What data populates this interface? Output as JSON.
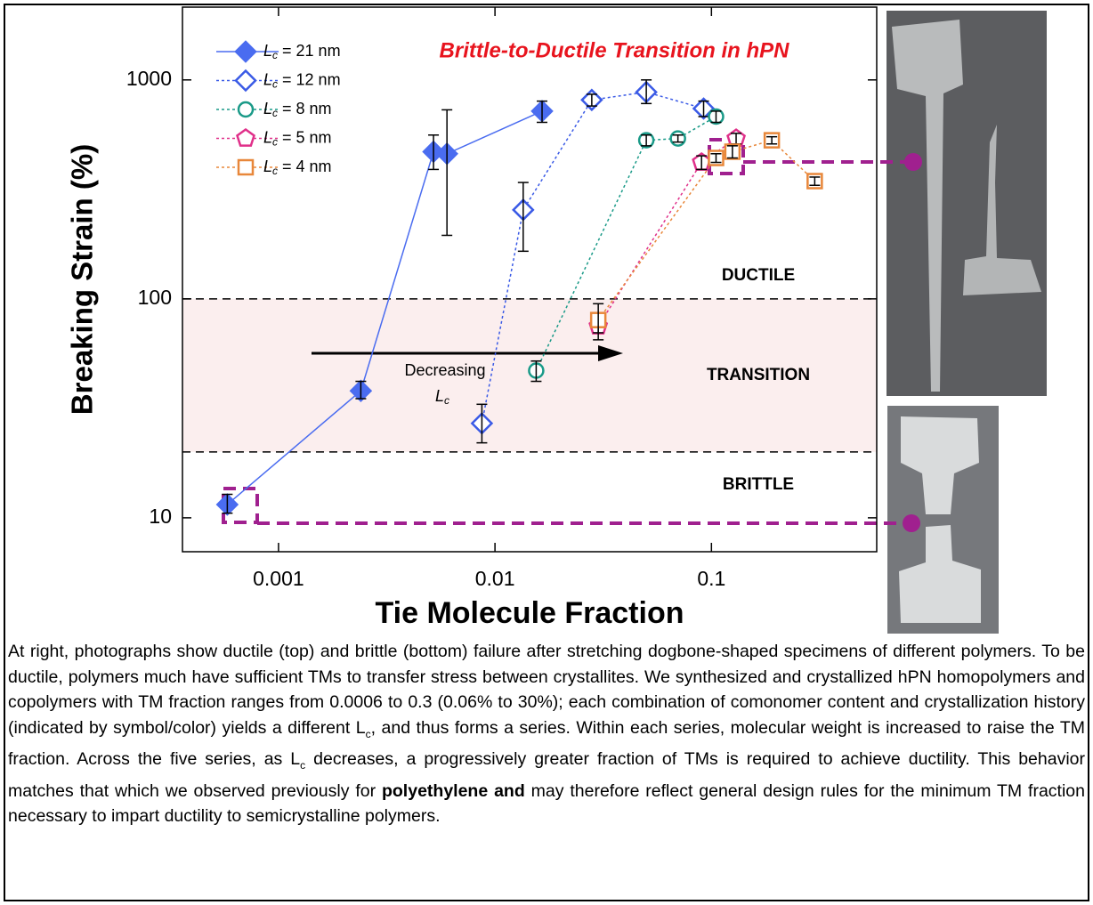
{
  "chart_data": {
    "type": "scatter-line",
    "title": "Brittle-to-Ductile Transition in hPN",
    "x_label": "Tie Molecule Fraction",
    "y_label": "Breaking Strain (%)",
    "x_log": true,
    "y_log": true,
    "xlim": [
      0.00036,
      0.58
    ],
    "ylim": [
      7,
      2150
    ],
    "xticks": [
      0.001,
      0.01,
      0.1
    ],
    "yticks": [
      10,
      100,
      1000
    ],
    "regions": {
      "bounds": [
        20,
        100
      ],
      "labels": [
        "BRITTLE",
        "TRANSITION",
        "DUCTILE"
      ],
      "shade": "#fbeeee"
    },
    "annotation": {
      "text": "Decreasing",
      "symbol": [
        "L",
        "c"
      ]
    },
    "series": [
      {
        "name": [
          "L",
          "c",
          " = 21 nm"
        ],
        "color": "#4a6cf0",
        "marker": "diamond-filled",
        "dash": "solid",
        "x": [
          0.00058,
          0.0024,
          0.0052,
          0.006,
          0.0165
        ],
        "values": [
          11.5,
          38,
          470,
          460,
          720
        ],
        "ylow": [
          10.5,
          35,
          390,
          195,
          640
        ],
        "yhigh": [
          12.8,
          42,
          560,
          730,
          800
        ]
      },
      {
        "name": [
          "L",
          "c",
          " = 12 nm"
        ],
        "color": "#3a5ae6",
        "marker": "diamond",
        "dash": "dotted",
        "x": [
          0.0087,
          0.0135,
          0.028,
          0.05,
          0.092
        ],
        "values": [
          27,
          255,
          810,
          880,
          740
        ],
        "ylow": [
          22,
          165,
          760,
          780,
          680
        ],
        "yhigh": [
          33,
          340,
          860,
          1000,
          800
        ]
      },
      {
        "name": [
          "L",
          "c",
          " = 8 nm"
        ],
        "color": "#1a9a88",
        "marker": "circle",
        "dash": "dotted",
        "x": [
          0.0155,
          0.05,
          0.07,
          0.105
        ],
        "values": [
          47,
          530,
          540,
          680
        ],
        "ylow": [
          42,
          500,
          520,
          640
        ],
        "yhigh": [
          52,
          560,
          560,
          720
        ]
      },
      {
        "name": [
          "L",
          "c",
          " = 5 nm"
        ],
        "color": "#e0308a",
        "marker": "pentagon",
        "dash": "dotted",
        "x": [
          0.03,
          0.09,
          0.13
        ],
        "values": [
          75,
          420,
          540
        ],
        "ylow": [
          65,
          390,
          510
        ],
        "yhigh": [
          85,
          450,
          570
        ]
      },
      {
        "name": [
          "L",
          "c",
          " = 4 nm"
        ],
        "color": "#e8873a",
        "marker": "square",
        "dash": "dotted",
        "x": [
          0.03,
          0.105,
          0.125,
          0.19,
          0.3
        ],
        "values": [
          80,
          440,
          470,
          530,
          345
        ],
        "ylow": [
          70,
          420,
          440,
          510,
          330
        ],
        "yhigh": [
          95,
          460,
          500,
          550,
          360
        ]
      }
    ]
  },
  "caption": [
    {
      "text": "At right, photographs show ductile (top) and brittle (bottom) failure after stretching dogbone-shaped specimens of different polymers.  To be ductile, polymers much have sufficient TMs to transfer stress between crystallites.  We synthesized and crystallized hPN homopolymers and copolymers with TM fraction ranges from 0.0006 to 0.3 (0.06% to 30%); each combination of comonomer content and crystallization history (indicated by symbol/color) yields a different L",
      "style": "normal"
    },
    {
      "text": "c",
      "style": "sub"
    },
    {
      "text": ", and thus forms a series. Within each series, molecular weight is increased to raise the TM fraction.  Across the five series, as L",
      "style": "normal"
    },
    {
      "text": "c",
      "style": "sub"
    },
    {
      "text": " decreases, a progressively greater fraction of TMs is required to achieve ductility.  This behavior matches that which we observed previously for ",
      "style": "normal"
    },
    {
      "text": "polyethylene and",
      "style": "bold"
    },
    {
      "text": " may therefore reflect general design rules for the minimum TM fraction necessary to impart ductility to semicrystalline polymers.",
      "style": "normal"
    }
  ]
}
